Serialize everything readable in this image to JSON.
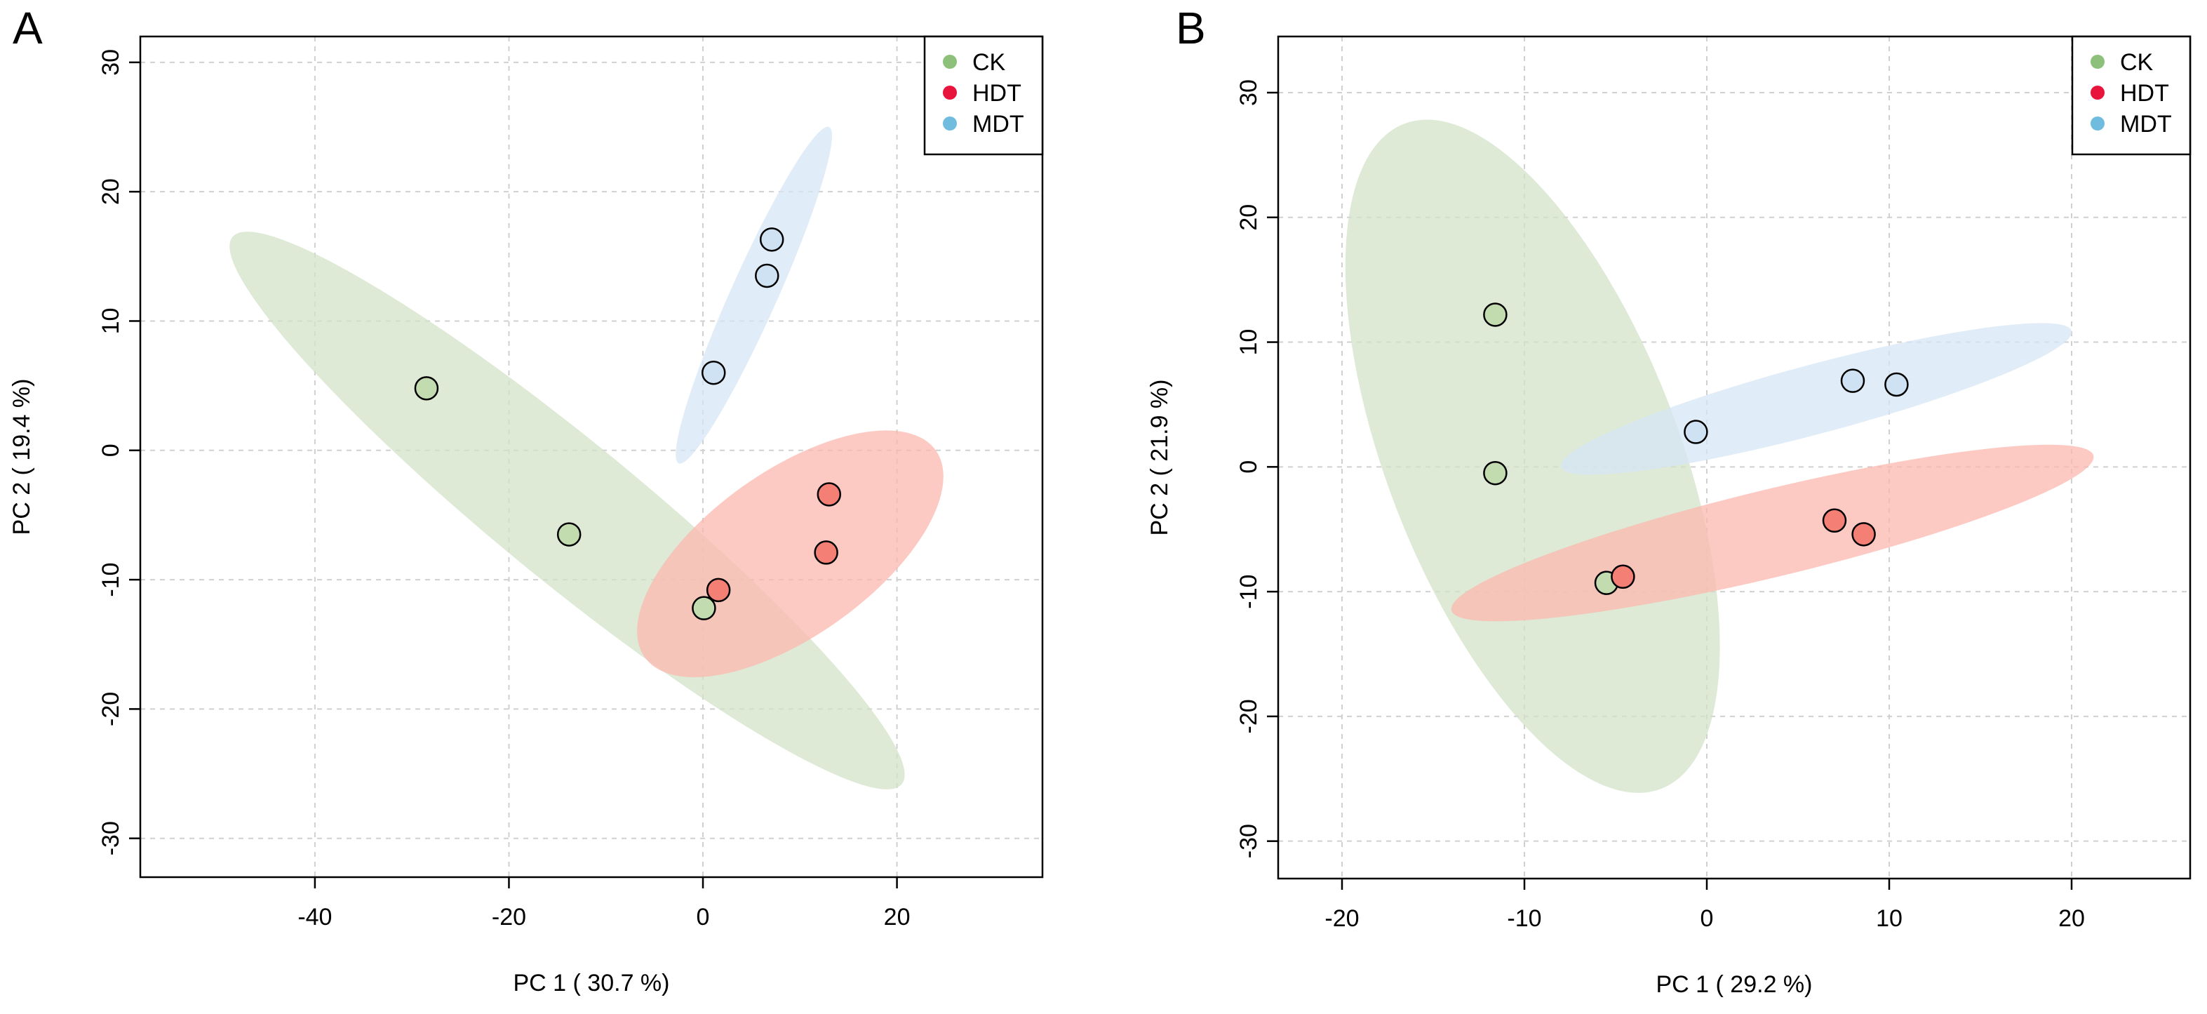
{
  "colors": {
    "CK": "#8dc07a",
    "HDT": "#e8143c",
    "MDT": "#6fbcdf",
    "CK_point": "#c2dcb0",
    "HDT_point": "#f47f74",
    "MDT_point": "#cfe2f3",
    "CK_ellipse": "#d3e3c8",
    "HDT_ellipse": "#fbb8ad",
    "MDT_ellipse": "#d6e5f4",
    "grid": "#d0d0d0"
  },
  "chart_data": [
    {
      "panel": "A",
      "type": "scatter",
      "xlabel": "PC 1 ( 30.7 %)",
      "ylabel": "PC 2 ( 19.4 %)",
      "xlim": [
        -58,
        35
      ],
      "ylim": [
        -33,
        32
      ],
      "xticks": [
        -40,
        -20,
        0,
        20
      ],
      "xtick_labels": [
        "-40",
        "-20",
        "0",
        "20"
      ],
      "yticks": [
        -30,
        -20,
        -10,
        0,
        10,
        20,
        30
      ],
      "ytick_labels": [
        "-30",
        "-20",
        "-10",
        "0",
        "10",
        "20",
        "30"
      ],
      "grid": true,
      "legend": {
        "position": "top-right",
        "entries": [
          "CK",
          "HDT",
          "MDT"
        ]
      },
      "series": [
        {
          "name": "CK",
          "x": [
            -28.5,
            -13.8,
            0.1
          ],
          "y": [
            4.8,
            -6.5,
            -12.2
          ],
          "ellipse": {
            "p1": [
              -48.5,
              16.5
            ],
            "p2": [
              20.5,
              -25.8
            ],
            "minor_axis": 7.2
          }
        },
        {
          "name": "HDT",
          "x": [
            13,
            12.7,
            1.6
          ],
          "y": [
            -3.4,
            -7.9,
            -10.8
          ],
          "ellipse": {
            "p1": [
              -6,
              -16
            ],
            "p2": [
              24,
              0
            ],
            "minor_axis": 8.5
          }
        },
        {
          "name": "MDT",
          "x": [
            7.1,
            6.6,
            1.1
          ],
          "y": [
            16.3,
            13.5,
            6
          ],
          "ellipse": {
            "p1": [
              -2.5,
              -1
            ],
            "p2": [
              13,
              25
            ],
            "minor_axis": 2.4
          }
        }
      ]
    },
    {
      "panel": "B",
      "type": "scatter",
      "xlabel": "PC 1 ( 29.2 %)",
      "ylabel": "PC 2 ( 21.9 %)",
      "xlim": [
        -23.5,
        26.5
      ],
      "ylim": [
        -33,
        34.5
      ],
      "xticks": [
        -20,
        -10,
        0,
        10,
        20
      ],
      "xtick_labels": [
        "-20",
        "-10",
        "0",
        "10",
        "20"
      ],
      "yticks": [
        -30,
        -20,
        -10,
        0,
        10,
        20,
        30
      ],
      "ytick_labels": [
        "-30",
        "-20",
        "-10",
        "0",
        "10",
        "20",
        "30"
      ],
      "grid": true,
      "legend": {
        "position": "top-right",
        "entries": [
          "CK",
          "HDT",
          "MDT"
        ]
      },
      "series": [
        {
          "name": "CK",
          "x": [
            -11.6,
            -11.6,
            -5.5
          ],
          "y": [
            12.2,
            -0.5,
            -9.3
          ],
          "ellipse": {
            "p1": [
              -16.6,
              27.5
            ],
            "p2": [
              -2.5,
              -25.8
            ],
            "minor_axis": 8
          }
        },
        {
          "name": "HDT",
          "x": [
            7,
            8.6,
            -4.6
          ],
          "y": [
            -4.3,
            -5.4,
            -8.8
          ],
          "ellipse": {
            "p1": [
              -14,
              -11.5
            ],
            "p2": [
              21.2,
              0.9
            ],
            "minor_axis": 2.4
          }
        },
        {
          "name": "MDT",
          "x": [
            8,
            10.4,
            -0.6
          ],
          "y": [
            6.9,
            6.6,
            2.8
          ],
          "ellipse": {
            "p1": [
              -8,
              0
            ],
            "p2": [
              20,
              10.9
            ],
            "minor_axis": 1.9
          }
        }
      ]
    }
  ]
}
